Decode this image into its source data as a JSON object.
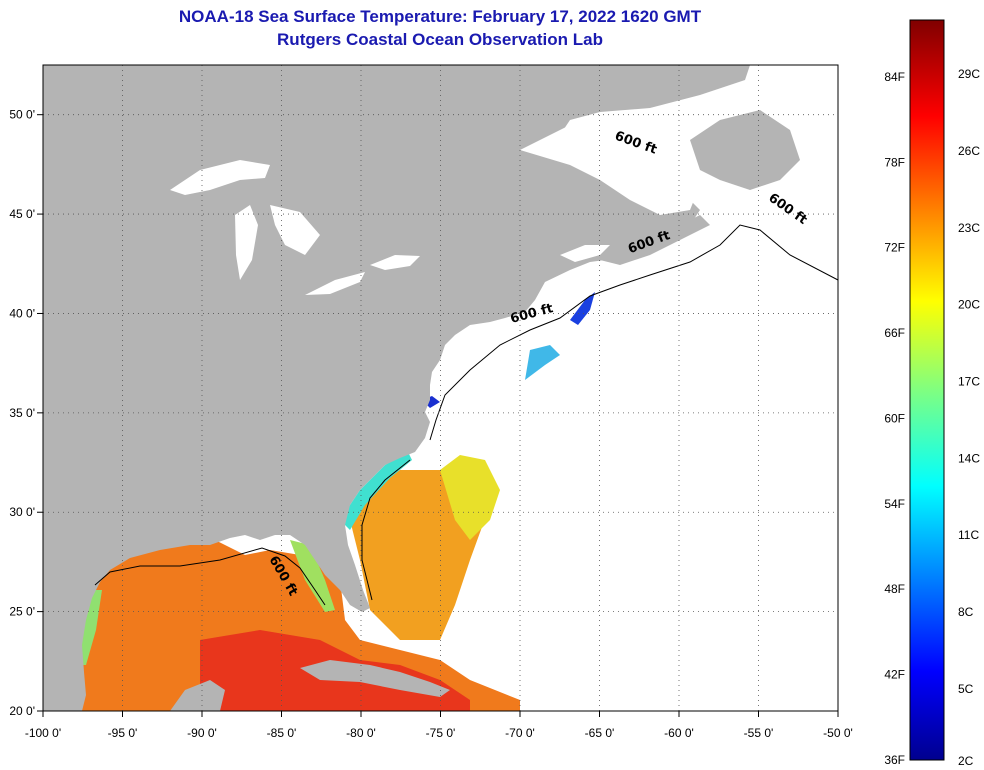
{
  "header": {
    "title_line1": "NOAA-18 Sea Surface Temperature:  February 17, 2022 1620 GMT",
    "title_line2": "Rutgers Coastal Ocean Observation Lab"
  },
  "map": {
    "lon_range": [
      -100,
      -50
    ],
    "lat_range": [
      20,
      52.5
    ],
    "lon_ticks": [
      {
        "v": -100,
        "label": "-100 0'"
      },
      {
        "v": -95,
        "label": "-95 0'"
      },
      {
        "v": -90,
        "label": "-90 0'"
      },
      {
        "v": -85,
        "label": "-85 0'"
      },
      {
        "v": -80,
        "label": "-80 0'"
      },
      {
        "v": -75,
        "label": "-75 0'"
      },
      {
        "v": -70,
        "label": "-70 0'"
      },
      {
        "v": -65,
        "label": "-65 0'"
      },
      {
        "v": -60,
        "label": "-60 0'"
      },
      {
        "v": -55,
        "label": "-55 0'"
      },
      {
        "v": -50,
        "label": "-50 0'"
      }
    ],
    "lat_ticks": [
      {
        "v": 50,
        "label": "50 0'"
      },
      {
        "v": 45,
        "label": "45 0'"
      },
      {
        "v": 40,
        "label": "40 0'"
      },
      {
        "v": 35,
        "label": "35 0'"
      },
      {
        "v": 30,
        "label": "30 0'"
      },
      {
        "v": 25,
        "label": "25 0'"
      },
      {
        "v": 20,
        "label": "20 0'"
      }
    ],
    "grid": "dotted",
    "land_color": "#b4b4b4",
    "isobath_labels": [
      {
        "text": "600 ft",
        "lon": -62.8,
        "lat": 48.4,
        "rot": 20
      },
      {
        "text": "600 ft",
        "lon": -53.3,
        "lat": 45.1,
        "rot": 35
      },
      {
        "text": "600 ft",
        "lon": -61.8,
        "lat": 43.4,
        "rot": -20
      },
      {
        "text": "600 ft",
        "lon": -69.2,
        "lat": 39.8,
        "rot": -15
      },
      {
        "text": "600 ft",
        "lon": -85.1,
        "lat": 26.7,
        "rot": 60
      }
    ]
  },
  "colorbar": {
    "vmin_f": 36,
    "vmax_f": 88,
    "f_labels": [
      "84F",
      "78F",
      "72F",
      "66F",
      "60F",
      "54F",
      "48F",
      "42F",
      "36F"
    ],
    "f_values": [
      84,
      78,
      72,
      66,
      60,
      54,
      48,
      42,
      36
    ],
    "c_labels": [
      "29C",
      "26C",
      "23C",
      "20C",
      "17C",
      "14C",
      "11C",
      "8C",
      "5C",
      "2C"
    ],
    "c_values": [
      29,
      26,
      23,
      20,
      17,
      14,
      11,
      8,
      5,
      2
    ],
    "colormap": "jet"
  }
}
